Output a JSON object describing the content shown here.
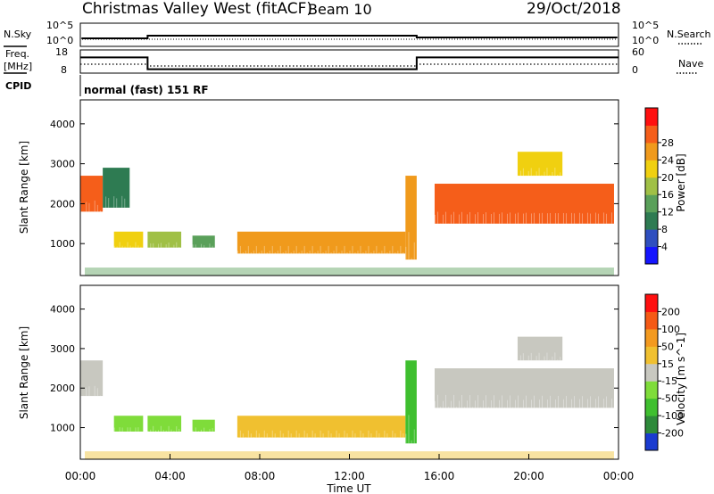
{
  "header": {
    "title": "Christmas Valley West (fitACF)",
    "beam": "Beam 10",
    "date": "29/Oct/2018"
  },
  "top_panels": {
    "nsky_label": "N.Sky",
    "nsearch_label": "N.Search",
    "noise_tick_high": "10^5",
    "noise_tick_low": "10^0",
    "freq_label": "Freq.",
    "freq_unit": "[MHz]",
    "freq_tick_high": "18",
    "freq_tick_low": "8",
    "nave_label": "Nave",
    "nave_tick_high": "60",
    "nave_tick_low": "0",
    "cpid_label": "CPID",
    "cpid_text": "normal (fast) 151 RF"
  },
  "chart_data": [
    {
      "type": "heatmap",
      "name": "power",
      "ylabel": "Slant Range [km]",
      "yticks": [
        "1000",
        "2000",
        "3000",
        "4000"
      ],
      "ylim": [
        200,
        4600
      ],
      "colorbar_label": "Power [dB]",
      "colorbar_ticks": [
        "4",
        "8",
        "12",
        "16",
        "20",
        "24",
        "28"
      ],
      "colorbar_colors": [
        "#1515ff",
        "#2f4fbf",
        "#2e7b52",
        "#5aa05a",
        "#a0c046",
        "#f0d010",
        "#f09a1c",
        "#f55e1a",
        "#ff1010"
      ],
      "approx_regions": [
        {
          "t_start": 0.0,
          "t_end": 1.0,
          "range_start": 1800,
          "range_end": 2700,
          "value": 28
        },
        {
          "t_start": 1.0,
          "t_end": 2.2,
          "range_start": 1900,
          "range_end": 2900,
          "value": 10
        },
        {
          "t_start": 1.5,
          "t_end": 2.8,
          "range_start": 900,
          "range_end": 1300,
          "value": 20
        },
        {
          "t_start": 3.0,
          "t_end": 4.5,
          "range_start": 900,
          "range_end": 1300,
          "value": 18
        },
        {
          "t_start": 5.0,
          "t_end": 6.0,
          "range_start": 900,
          "range_end": 1200,
          "value": 14
        },
        {
          "t_start": 7.0,
          "t_end": 14.5,
          "range_start": 750,
          "range_end": 1300,
          "value": 26
        },
        {
          "t_start": 14.5,
          "t_end": 15.0,
          "range_start": 600,
          "range_end": 2700,
          "value": 24
        },
        {
          "t_start": 15.8,
          "t_end": 23.8,
          "range_start": 1500,
          "range_end": 2500,
          "value": 30
        },
        {
          "t_start": 19.5,
          "t_end": 21.5,
          "range_start": 2700,
          "range_end": 3300,
          "value": 20
        }
      ]
    },
    {
      "type": "heatmap",
      "name": "velocity",
      "ylabel": "Slant Range [km]",
      "yticks": [
        "1000",
        "2000",
        "3000",
        "4000"
      ],
      "ylim": [
        200,
        4600
      ],
      "xlabel": "Time UT",
      "xticks": [
        "00:00",
        "04:00",
        "08:00",
        "12:00",
        "16:00",
        "20:00",
        "00:00"
      ],
      "xlim": [
        0,
        24
      ],
      "colorbar_label": "Velocity [m s^-1]",
      "colorbar_ticks": [
        "200",
        "100",
        "50",
        "15",
        "-15",
        "-50",
        "-100",
        "-200"
      ],
      "colorbar_colors": [
        "#1a3bd0",
        "#2e8a3a",
        "#3fbf2f",
        "#7fdc3a",
        "#c8c8c0",
        "#f0c030",
        "#f39a20",
        "#f55a15",
        "#ff1010"
      ],
      "approx_regions": [
        {
          "t_start": 0.0,
          "t_end": 1.0,
          "range_start": 1800,
          "range_end": 2700,
          "value": 0
        },
        {
          "t_start": 1.5,
          "t_end": 2.8,
          "range_start": 900,
          "range_end": 1300,
          "value": 40
        },
        {
          "t_start": 3.0,
          "t_end": 4.5,
          "range_start": 900,
          "range_end": 1300,
          "value": 40
        },
        {
          "t_start": 5.0,
          "t_end": 6.0,
          "range_start": 900,
          "range_end": 1200,
          "value": 30
        },
        {
          "t_start": 7.0,
          "t_end": 14.5,
          "range_start": 750,
          "range_end": 1300,
          "value": -20
        },
        {
          "t_start": 14.5,
          "t_end": 15.0,
          "range_start": 600,
          "range_end": 2700,
          "value": 60
        },
        {
          "t_start": 15.8,
          "t_end": 23.8,
          "range_start": 1500,
          "range_end": 2500,
          "value": 0
        },
        {
          "t_start": 19.5,
          "t_end": 21.5,
          "range_start": 2700,
          "range_end": 3300,
          "value": 0
        }
      ]
    }
  ],
  "time_series": {
    "freq_mhz": [
      {
        "t_start": 0.0,
        "t_end": 3.0,
        "value": 16
      },
      {
        "t_start": 3.0,
        "t_end": 15.0,
        "value": 10
      },
      {
        "t_start": 15.0,
        "t_end": 24.0,
        "value": 16
      }
    ],
    "nave": [
      {
        "t_start": 0.0,
        "t_end": 24.0,
        "value": 16
      }
    ],
    "nsky_level": 3,
    "nsearch_level": 3
  }
}
